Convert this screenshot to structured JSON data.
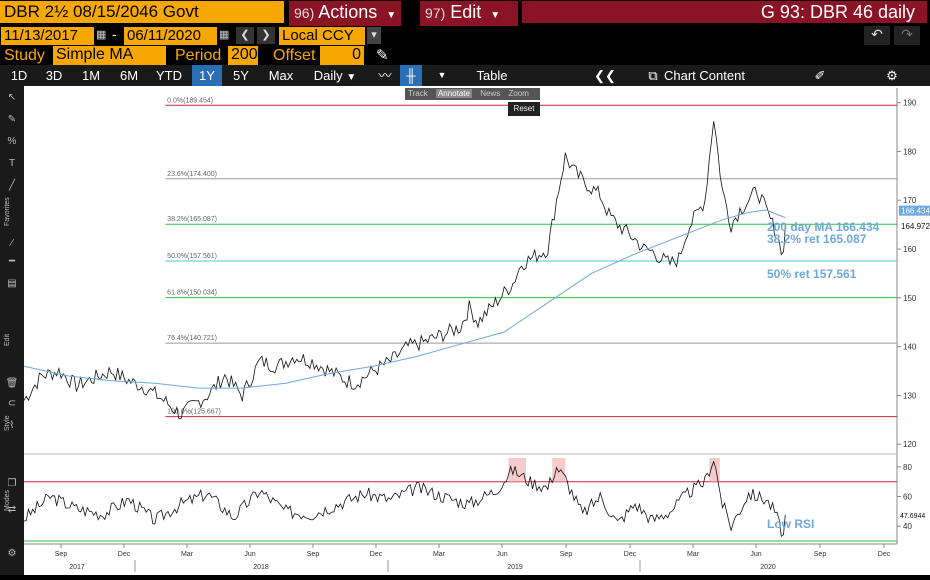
{
  "header": {
    "security": "DBR 2½ 08/15/2046 Govt",
    "actions": {
      "num": "96)",
      "label": "Actions"
    },
    "edit": {
      "num": "97)",
      "label": "Edit"
    },
    "title": "G 93: DBR 46 daily"
  },
  "dates": {
    "start": "11/13/2017",
    "dash": "-",
    "end": "06/11/2020",
    "currency": "Local CCY"
  },
  "study": {
    "label": "Study",
    "value": "Simple MA",
    "period_label": "Period",
    "period": "200",
    "offset_label": "Offset",
    "offset": "0"
  },
  "toolbar": {
    "ranges": [
      "1D",
      "3D",
      "1M",
      "6M",
      "YTD",
      "1Y",
      "5Y",
      "Max"
    ],
    "selected": "1Y",
    "freq": "Daily",
    "table": "Table",
    "chart_content": "Chart Content"
  },
  "zoom_tools": {
    "items": [
      "Track",
      "Annotate",
      "News",
      "Zoom"
    ],
    "reset": "Reset"
  },
  "left_tabs": {
    "favorites": "Favorites",
    "edit": "Edit",
    "style": "Style",
    "modes": "Modes"
  },
  "chart_data": [
    {
      "type": "line",
      "ylim": [
        118,
        193
      ],
      "yticks": [
        120,
        130,
        140,
        150,
        160,
        170,
        180,
        190
      ],
      "x_axis": {
        "months": [
          "Sep",
          "Dec",
          "Mar",
          "Jun",
          "Sep",
          "Dec",
          "Mar",
          "Jun",
          "Sep",
          "Dec",
          "Mar",
          "Jun",
          "Sep",
          "Dec"
        ],
        "years": [
          "2017",
          "2018",
          "2019",
          "2020"
        ]
      },
      "fib_levels": [
        {
          "label": "0.0%(189.454)",
          "value": 189.454,
          "color": "#c8293b"
        },
        {
          "label": "23.6%(174.400)",
          "value": 174.4,
          "color": "#999999"
        },
        {
          "label": "38.2%(165.087)",
          "value": 165.087,
          "color": "#2ec04a"
        },
        {
          "label": "50.0%(157.561)",
          "value": 157.561,
          "color": "#4fc9d6"
        },
        {
          "label": "61.8%(150.034)",
          "value": 150.034,
          "color": "#2ec04a"
        },
        {
          "label": "76.4%(140.721)",
          "value": 140.721,
          "color": "#999999"
        },
        {
          "label": "100.0%(125.667)",
          "value": 125.667,
          "color": "#c8293b"
        }
      ],
      "series": [
        {
          "name": "DBR 46",
          "color": "#111111",
          "last": "164.972",
          "values": [
            [
              0,
              129
            ],
            [
              0.02,
              134
            ],
            [
              0.04,
              135
            ],
            [
              0.06,
              132
            ],
            [
              0.08,
              133.5
            ],
            [
              0.1,
              135
            ],
            [
              0.12,
              133
            ],
            [
              0.14,
              131.5
            ],
            [
              0.16,
              129
            ],
            [
              0.18,
              126
            ],
            [
              0.19,
              127.5
            ],
            [
              0.21,
              130
            ],
            [
              0.23,
              134
            ],
            [
              0.25,
              130
            ],
            [
              0.27,
              137
            ],
            [
              0.29,
              136
            ],
            [
              0.31,
              138
            ],
            [
              0.33,
              137
            ],
            [
              0.35,
              135
            ],
            [
              0.37,
              133
            ],
            [
              0.38,
              132.5
            ],
            [
              0.4,
              135
            ],
            [
              0.42,
              137
            ],
            [
              0.44,
              140
            ],
            [
              0.46,
              141
            ],
            [
              0.48,
              142.5
            ],
            [
              0.5,
              144
            ],
            [
              0.51,
              148
            ],
            [
              0.52,
              145
            ],
            [
              0.54,
              149
            ],
            [
              0.56,
              153
            ],
            [
              0.57,
              157
            ],
            [
              0.58,
              158
            ],
            [
              0.6,
              160
            ],
            [
              0.61,
              170
            ],
            [
              0.62,
              179
            ],
            [
              0.63,
              176
            ],
            [
              0.64,
              174
            ],
            [
              0.66,
              171
            ],
            [
              0.67,
              167
            ],
            [
              0.68,
              165
            ],
            [
              0.7,
              162
            ],
            [
              0.71,
              160
            ],
            [
              0.72,
              159.5
            ],
            [
              0.73,
              158
            ],
            [
              0.74,
              157
            ],
            [
              0.75,
              158
            ],
            [
              0.76,
              164
            ],
            [
              0.77,
              167
            ],
            [
              0.78,
              170
            ],
            [
              0.79,
              187
            ],
            [
              0.8,
              172
            ],
            [
              0.81,
              165
            ],
            [
              0.82,
              168
            ],
            [
              0.83,
              170
            ],
            [
              0.84,
              172
            ],
            [
              0.85,
              168
            ],
            [
              0.86,
              164
            ],
            [
              0.87,
              159
            ],
            [
              0.872,
              165
            ]
          ]
        },
        {
          "name": "200 day MA",
          "color": "#6fa8dc",
          "label": "200 day MA 166.434",
          "last": "166.434",
          "values": [
            [
              0,
              136
            ],
            [
              0.05,
              134
            ],
            [
              0.1,
              133
            ],
            [
              0.15,
              132.5
            ],
            [
              0.2,
              131.5
            ],
            [
              0.25,
              131.5
            ],
            [
              0.3,
              132.5
            ],
            [
              0.35,
              134.5
            ],
            [
              0.4,
              136
            ],
            [
              0.45,
              138
            ],
            [
              0.5,
              140.5
            ],
            [
              0.55,
              143
            ],
            [
              0.6,
              149
            ],
            [
              0.65,
              155
            ],
            [
              0.7,
              159
            ],
            [
              0.75,
              162.5
            ],
            [
              0.8,
              166
            ],
            [
              0.83,
              167.5
            ],
            [
              0.85,
              168
            ],
            [
              0.872,
              166.434
            ]
          ]
        }
      ],
      "annotations": [
        {
          "text": "200 day MA 166.434",
          "color": "#6fa8dc"
        },
        {
          "text": "38.2% ret 165.087",
          "color": "#6fa8dc"
        },
        {
          "text": "50% ret 157.561",
          "color": "#6fa8dc"
        }
      ]
    },
    {
      "type": "line",
      "ylim": [
        28,
        86
      ],
      "yticks": [
        40,
        60,
        80
      ],
      "levels": [
        {
          "value": 70,
          "color": "#c8293b"
        },
        {
          "value": 30,
          "color": "#2ec04a"
        }
      ],
      "series": [
        {
          "name": "RSI",
          "color": "#111111",
          "last": "47.6944",
          "values": [
            [
              0,
              45
            ],
            [
              0.03,
              60
            ],
            [
              0.06,
              52
            ],
            [
              0.09,
              48
            ],
            [
              0.12,
              58
            ],
            [
              0.15,
              44
            ],
            [
              0.18,
              55
            ],
            [
              0.21,
              62
            ],
            [
              0.24,
              46
            ],
            [
              0.27,
              64
            ],
            [
              0.3,
              50
            ],
            [
              0.33,
              48
            ],
            [
              0.36,
              55
            ],
            [
              0.39,
              62
            ],
            [
              0.42,
              58
            ],
            [
              0.45,
              66
            ],
            [
              0.48,
              60
            ],
            [
              0.51,
              55
            ],
            [
              0.54,
              64
            ],
            [
              0.56,
              78
            ],
            [
              0.58,
              70
            ],
            [
              0.6,
              66
            ],
            [
              0.61,
              80
            ],
            [
              0.62,
              72
            ],
            [
              0.64,
              48
            ],
            [
              0.66,
              60
            ],
            [
              0.68,
              42
            ],
            [
              0.7,
              55
            ],
            [
              0.72,
              44
            ],
            [
              0.74,
              50
            ],
            [
              0.76,
              62
            ],
            [
              0.78,
              70
            ],
            [
              0.79,
              86
            ],
            [
              0.8,
              55
            ],
            [
              0.81,
              40
            ],
            [
              0.83,
              62
            ],
            [
              0.85,
              58
            ],
            [
              0.86,
              50
            ],
            [
              0.87,
              33
            ],
            [
              0.872,
              47.6944
            ]
          ]
        }
      ],
      "annotations": [
        {
          "text": "Low RSI",
          "color": "#6fa8dc"
        }
      ]
    }
  ]
}
